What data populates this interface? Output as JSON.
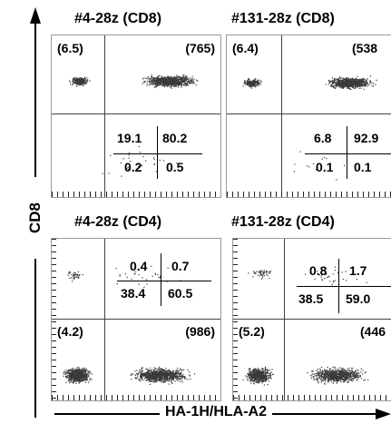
{
  "axes": {
    "y_label": "CD8",
    "x_label": "HA-1H/HLA-A2"
  },
  "panels": [
    {
      "title": "#4-28z (CD8)",
      "corner_left": "(6.5)",
      "corner_right": "(765)",
      "quadrants": {
        "tl": "19.1",
        "tr": "80.2",
        "bl": "0.2",
        "br": "0.5"
      }
    },
    {
      "title": "#131-28z (CD8)",
      "corner_left": "(6.4)",
      "corner_right": "(538",
      "quadrants": {
        "tl": "6.8",
        "tr": "92.9",
        "bl": "0.1",
        "br": "0.1"
      }
    },
    {
      "title": "#4-28z (CD4)",
      "corner_left": "(4.2)",
      "corner_right": "(986)",
      "quadrants": {
        "tl": "0.4",
        "tr": "0.7",
        "bl": "38.4",
        "br": "60.5"
      }
    },
    {
      "title": "#131-28z (CD4)",
      "corner_left": "(5.2)",
      "corner_right": "(446",
      "quadrants": {
        "tl": "0.8",
        "tr": "1.7",
        "bl": "38.5",
        "br": "59.0"
      }
    }
  ],
  "colors": {
    "dots": "#3a3a3a",
    "frame": "#9a9a9a"
  }
}
